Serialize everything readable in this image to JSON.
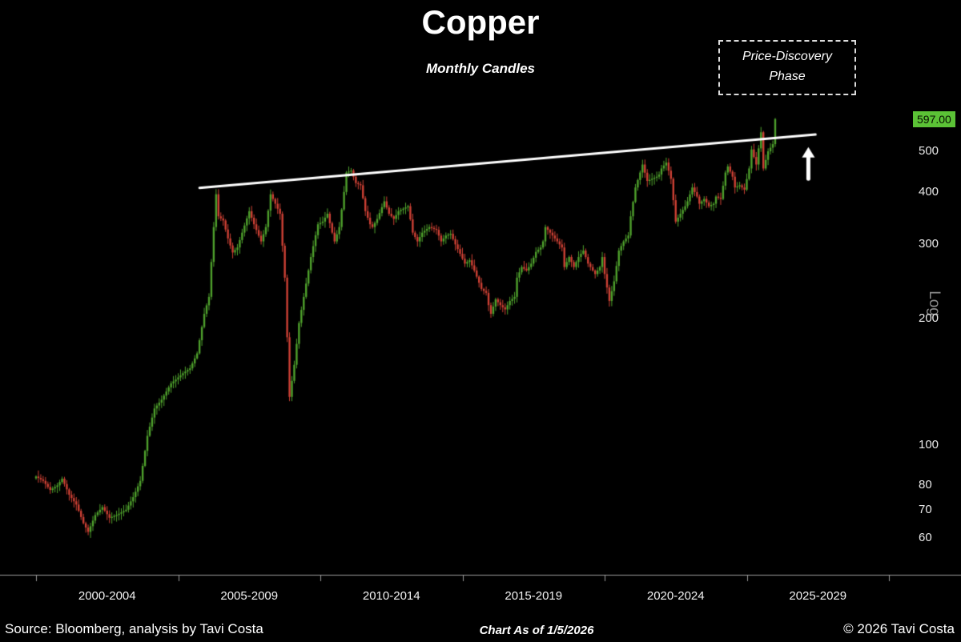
{
  "title": "Copper",
  "subtitle": "Monthly Candles",
  "annotation_box": {
    "line1": "Price-Discovery",
    "line2": "Phase"
  },
  "footer": {
    "source": "Source: Bloomberg, analysis by Tavi Costa",
    "as_of": "Chart As of 1/5/2026",
    "copyright": "© 2026 Tavi Costa"
  },
  "y_axis": {
    "scale_label": "Log",
    "last_price_label": "597.00",
    "ticks": [
      500,
      400,
      300,
      200,
      100,
      80,
      70,
      60
    ]
  },
  "x_axis": {
    "ticks": [
      {
        "label": "2000-2004",
        "center_month": 30
      },
      {
        "label": "2005-2009",
        "center_month": 90
      },
      {
        "label": "2010-2014",
        "center_month": 150
      },
      {
        "label": "2015-2019",
        "center_month": 210
      },
      {
        "label": "2020-2024",
        "center_month": 270
      },
      {
        "label": "2025-2029",
        "center_month": 330
      }
    ],
    "boundary_months": [
      0,
      60,
      120,
      180,
      240,
      300,
      360
    ]
  },
  "colors": {
    "background": "#000000",
    "up": "#4ea02c",
    "down": "#cc4034",
    "trendline": "#ffffff",
    "arrow": "#ffffff",
    "axis_line": "#9a9a9a",
    "last_price_bg": "#5bc236",
    "text": "#ffffff"
  },
  "chart_data": {
    "type": "candlestick",
    "title": "Copper",
    "subtitle": "Monthly Candles",
    "x_start": "2000-01",
    "x_end": "2026-01",
    "months_total": 313,
    "y_scale": "log",
    "ylim": [
      49,
      620
    ],
    "last_price": 597.0,
    "seed": 7,
    "trendline": {
      "start_month": 69,
      "start_price": 409,
      "end_month": 329,
      "end_price": 548
    },
    "arrow": {
      "month": 326,
      "from_price": 430,
      "to_price": 505
    },
    "monthly_close_keypoints": [
      [
        0,
        84
      ],
      [
        3,
        82
      ],
      [
        6,
        78
      ],
      [
        9,
        80
      ],
      [
        11,
        83
      ],
      [
        14,
        76
      ],
      [
        17,
        72
      ],
      [
        20,
        65
      ],
      [
        22,
        62
      ],
      [
        25,
        68
      ],
      [
        28,
        71
      ],
      [
        31,
        67
      ],
      [
        34,
        68
      ],
      [
        38,
        70
      ],
      [
        41,
        75
      ],
      [
        44,
        82
      ],
      [
        47,
        105
      ],
      [
        50,
        122
      ],
      [
        53,
        128
      ],
      [
        57,
        140
      ],
      [
        59,
        143
      ],
      [
        62,
        148
      ],
      [
        65,
        152
      ],
      [
        68,
        165
      ],
      [
        71,
        205
      ],
      [
        73,
        225
      ],
      [
        75,
        330
      ],
      [
        76,
        395
      ],
      [
        77,
        350
      ],
      [
        79,
        342
      ],
      [
        81,
        310
      ],
      [
        83,
        287
      ],
      [
        85,
        295
      ],
      [
        87,
        320
      ],
      [
        90,
        360
      ],
      [
        92,
        335
      ],
      [
        95,
        305
      ],
      [
        97,
        330
      ],
      [
        99,
        395
      ],
      [
        101,
        375
      ],
      [
        103,
        355
      ],
      [
        105,
        250
      ],
      [
        107,
        130
      ],
      [
        109,
        155
      ],
      [
        111,
        195
      ],
      [
        113,
        225
      ],
      [
        116,
        280
      ],
      [
        119,
        335
      ],
      [
        121,
        340
      ],
      [
        123,
        355
      ],
      [
        125,
        320
      ],
      [
        126,
        305
      ],
      [
        128,
        330
      ],
      [
        130,
        400
      ],
      [
        131,
        445
      ],
      [
        133,
        450
      ],
      [
        135,
        420
      ],
      [
        137,
        415
      ],
      [
        139,
        360
      ],
      [
        141,
        335
      ],
      [
        142,
        330
      ],
      [
        144,
        345
      ],
      [
        147,
        380
      ],
      [
        149,
        355
      ],
      [
        151,
        345
      ],
      [
        153,
        360
      ],
      [
        155,
        365
      ],
      [
        157,
        370
      ],
      [
        159,
        320
      ],
      [
        161,
        305
      ],
      [
        163,
        320
      ],
      [
        166,
        330
      ],
      [
        169,
        325
      ],
      [
        171,
        305
      ],
      [
        173,
        315
      ],
      [
        175,
        318
      ],
      [
        177,
        300
      ],
      [
        179,
        285
      ],
      [
        181,
        270
      ],
      [
        183,
        275
      ],
      [
        185,
        260
      ],
      [
        188,
        235
      ],
      [
        190,
        230
      ],
      [
        191,
        215
      ],
      [
        192,
        205
      ],
      [
        194,
        222
      ],
      [
        196,
        215
      ],
      [
        198,
        210
      ],
      [
        200,
        220
      ],
      [
        202,
        225
      ],
      [
        203,
        250
      ],
      [
        205,
        265
      ],
      [
        207,
        260
      ],
      [
        209,
        270
      ],
      [
        211,
        288
      ],
      [
        213,
        295
      ],
      [
        214,
        305
      ],
      [
        215,
        330
      ],
      [
        217,
        320
      ],
      [
        219,
        310
      ],
      [
        220,
        305
      ],
      [
        222,
        295
      ],
      [
        223,
        265
      ],
      [
        225,
        280
      ],
      [
        227,
        265
      ],
      [
        229,
        280
      ],
      [
        231,
        290
      ],
      [
        233,
        270
      ],
      [
        235,
        260
      ],
      [
        236,
        255
      ],
      [
        238,
        265
      ],
      [
        239,
        280
      ],
      [
        240,
        255
      ],
      [
        242,
        220
      ],
      [
        244,
        245
      ],
      [
        246,
        290
      ],
      [
        248,
        305
      ],
      [
        250,
        315
      ],
      [
        251,
        350
      ],
      [
        253,
        410
      ],
      [
        255,
        445
      ],
      [
        256,
        465
      ],
      [
        258,
        425
      ],
      [
        260,
        430
      ],
      [
        262,
        435
      ],
      [
        263,
        440
      ],
      [
        264,
        455
      ],
      [
        266,
        470
      ],
      [
        268,
        430
      ],
      [
        270,
        340
      ],
      [
        272,
        355
      ],
      [
        274,
        370
      ],
      [
        275,
        380
      ],
      [
        277,
        410
      ],
      [
        279,
        390
      ],
      [
        280,
        375
      ],
      [
        282,
        385
      ],
      [
        284,
        370
      ],
      [
        286,
        375
      ],
      [
        287,
        390
      ],
      [
        289,
        385
      ],
      [
        291,
        445
      ],
      [
        292,
        460
      ],
      [
        294,
        435
      ],
      [
        295,
        410
      ],
      [
        297,
        415
      ],
      [
        299,
        405
      ],
      [
        301,
        455
      ],
      [
        302,
        505
      ],
      [
        304,
        465
      ],
      [
        306,
        555
      ],
      [
        307,
        455
      ],
      [
        309,
        500
      ],
      [
        311,
        520
      ],
      [
        312,
        597
      ]
    ]
  }
}
